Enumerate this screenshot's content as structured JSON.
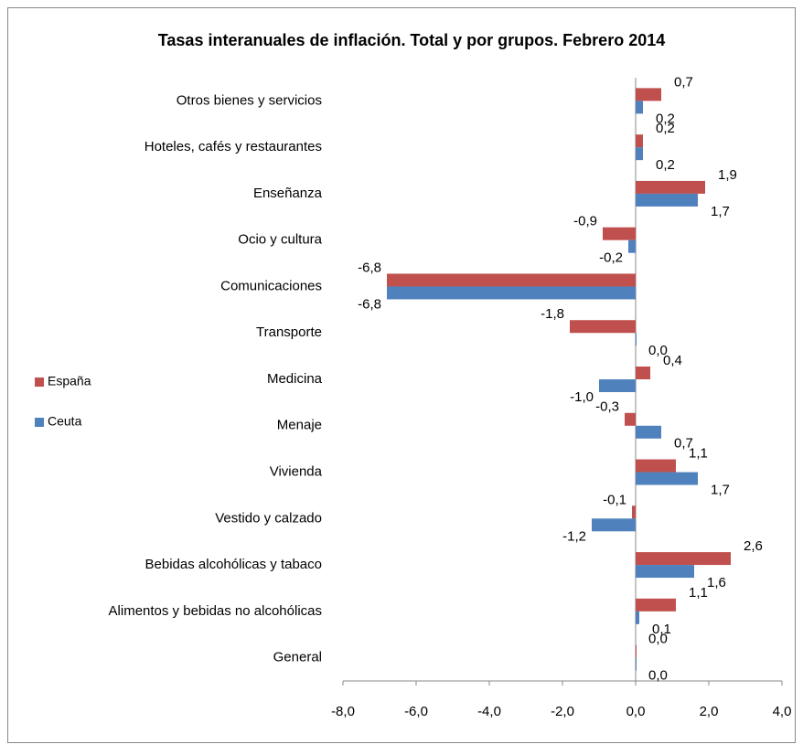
{
  "chart_data": {
    "type": "barh",
    "title": "Tasas interanuales de inflación. Total y por grupos. Febrero 2014",
    "categories": [
      "Otros bienes y servicios",
      "Hoteles, cafés y restaurantes",
      "Enseñanza",
      "Ocio y cultura",
      "Comunicaciones",
      "Transporte",
      "Medicina",
      "Menaje",
      "Vivienda",
      "Vestido y calzado",
      "Bebidas alcohólicas y tabaco",
      "Alimentos y bebidas no alcohólicas",
      "General"
    ],
    "series": [
      {
        "name": "España",
        "color": "#c0504d",
        "values": [
          0.7,
          0.2,
          1.9,
          -0.9,
          -6.8,
          -1.8,
          0.4,
          -0.3,
          1.1,
          -0.1,
          2.6,
          1.1,
          0.0
        ],
        "value_labels": [
          "0,7",
          "0,2",
          "1,9",
          "-0,9",
          "-6,8",
          "-1,8",
          "0,4",
          "-0,3",
          "1,1",
          "-0,1",
          "2,6",
          "1,1",
          "0,0"
        ]
      },
      {
        "name": "Ceuta",
        "color": "#4f81bd",
        "values": [
          0.2,
          0.2,
          1.7,
          -0.2,
          -6.8,
          0.0,
          -1.0,
          0.7,
          1.7,
          -1.2,
          1.6,
          0.1,
          0.0
        ],
        "value_labels": [
          "0,2",
          "0,2",
          "1,7",
          "-0,2",
          "-6,8",
          "0,0",
          "-1,0",
          "0,7",
          "1,7",
          "-1,2",
          "1,6",
          "0,1",
          "0,0"
        ]
      }
    ],
    "xlim": [
      -8,
      4
    ],
    "xticks": [
      {
        "value": -8,
        "label": "-8,0"
      },
      {
        "value": -6,
        "label": "-6,0"
      },
      {
        "value": -4,
        "label": "-4,0"
      },
      {
        "value": -2,
        "label": "-2,0"
      },
      {
        "value": 0,
        "label": "0,0"
      },
      {
        "value": 2,
        "label": "2,0"
      },
      {
        "value": 4,
        "label": "4,0"
      }
    ],
    "legend": "left",
    "grid": false
  }
}
